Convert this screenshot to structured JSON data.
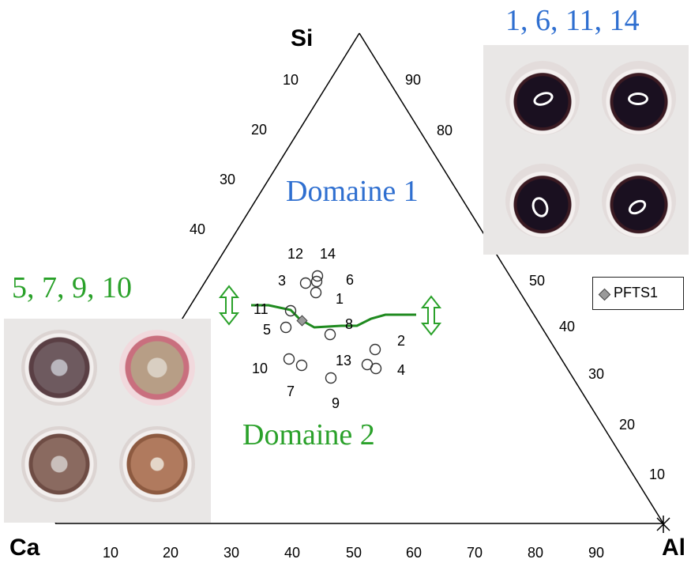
{
  "vertices": {
    "top": "Si",
    "left": "Ca",
    "right": "Al"
  },
  "left_edge_ticks": [
    "10",
    "20",
    "30",
    "40"
  ],
  "right_edge_ticks": [
    "90",
    "80",
    "50",
    "40",
    "30",
    "20",
    "10"
  ],
  "bottom_ticks": [
    "10",
    "20",
    "30",
    "40",
    "50",
    "60",
    "70",
    "80",
    "90"
  ],
  "domain_labels": {
    "domain1": "Domaine 1",
    "domain2": "Domaine 2"
  },
  "photo_labels": {
    "top_right": "1, 6, 11, 14",
    "left": "5, 7, 9, 10"
  },
  "legend": {
    "marker": "diamond",
    "label": "PFTS1"
  },
  "samples": [
    "12",
    "14",
    "3",
    "6",
    "1",
    "11",
    "5",
    "8",
    "2",
    "13",
    "10",
    "4",
    "7",
    "9"
  ],
  "colors": {
    "domain1": "#2f6fd0",
    "domain2": "#2aa12a",
    "boundary": "#1f8a1f"
  }
}
